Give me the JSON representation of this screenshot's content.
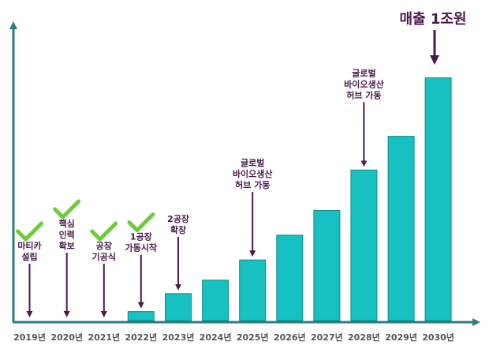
{
  "chart_data": {
    "type": "bar",
    "title": "",
    "xlabel": "",
    "ylabel": "",
    "categories": [
      "2019년",
      "2020년",
      "2021년",
      "2022년",
      "2023년",
      "2024년",
      "2025년",
      "2026년",
      "2027년",
      "2028년",
      "2029년",
      "2030년"
    ],
    "values": [
      0,
      0,
      0,
      4,
      12,
      18,
      27,
      38,
      49,
      67,
      82,
      108
    ],
    "ylim": [
      0,
      130
    ],
    "grid": false,
    "legend": "none",
    "headline": "매출 1조원",
    "annotations": [
      {
        "category": "2019년",
        "lines": [
          "마티카",
          "설립"
        ],
        "checked": true
      },
      {
        "category": "2020년",
        "lines": [
          "핵심",
          "인력",
          "확보"
        ],
        "checked": true
      },
      {
        "category": "2021년",
        "lines": [
          "공장",
          "기공식"
        ],
        "checked": true
      },
      {
        "category": "2022년",
        "lines": [
          "1공장",
          "가동시작"
        ],
        "checked": true
      },
      {
        "category": "2023년",
        "lines": [
          "2공장",
          "확장"
        ],
        "checked": false
      },
      {
        "category": "2025년",
        "lines": [
          "글로벌",
          "바이오생산",
          "허브 가동"
        ],
        "checked": false
      },
      {
        "category": "2028년",
        "lines": [
          "글로벌",
          "바이오생산",
          "허브 가동"
        ],
        "checked": false
      }
    ]
  },
  "colors": {
    "bar": "#17c1c1",
    "bar_outline": "#0f8a8a",
    "axis": "#2e7d7d",
    "arrow": "#4a1a4a",
    "check": "#6ccc3a",
    "text": "#4a1a4a",
    "tick_text": "#555555"
  },
  "icons": {
    "milestone_done": "check-icon",
    "milestone_pointer": "down-arrow-icon"
  }
}
